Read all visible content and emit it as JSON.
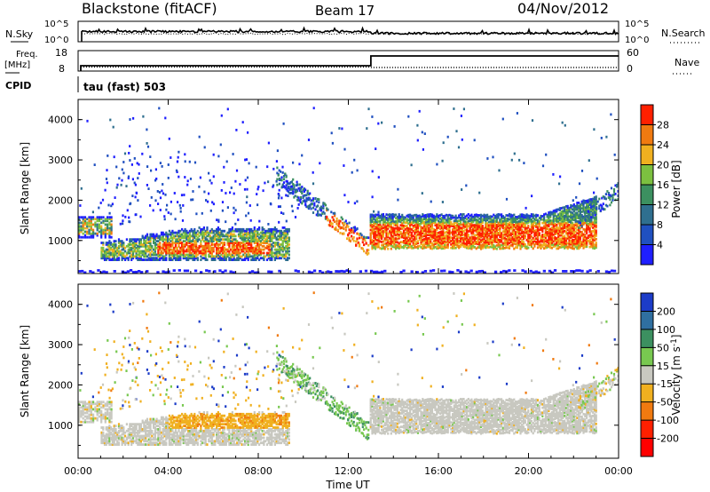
{
  "header": {
    "station": "Blackstone (fitACF)",
    "beam": "Beam 17",
    "date": "04/Nov/2012"
  },
  "params": {
    "nsky_label": "N.Sky",
    "nsearch_label": "N.Search",
    "noise_ticks": [
      "10^5",
      "10^0"
    ],
    "noise_ticks_right": [
      "10^5",
      "10^0"
    ],
    "freq_label_1": "Freq.",
    "freq_label_2": "[MHz]",
    "freq_ticks": [
      "18",
      "8"
    ],
    "nave_label": "Nave",
    "nave_ticks": [
      "60",
      "0"
    ],
    "cpid_label": "CPID",
    "cpid_text": "tau (fast) 503"
  },
  "chart_data": [
    {
      "type": "heatmap",
      "panel": "power",
      "ylabel": "Slant Range [km]",
      "yticks": [
        1000,
        2000,
        3000,
        4000
      ],
      "ylim": [
        180,
        4500
      ],
      "xlim_hours": [
        0,
        24
      ],
      "colorbar": {
        "label": "Power [dB]",
        "ticks": [
          "4",
          "8",
          "12",
          "16",
          "20",
          "24",
          "28"
        ],
        "colors": [
          "#1f1fff",
          "#2050c0",
          "#2f6f8f",
          "#3c9060",
          "#7cc040",
          "#f0b020",
          "#f07a10",
          "#ff2000"
        ]
      }
    },
    {
      "type": "heatmap",
      "panel": "velocity",
      "ylabel": "Slant Range [km]",
      "yticks": [
        1000,
        2000,
        3000,
        4000
      ],
      "ylim": [
        180,
        4500
      ],
      "xlim_hours": [
        0,
        24
      ],
      "colorbar": {
        "label": "Velocity [m s",
        "label_sup": "-1",
        "label_end": "]",
        "ticks": [
          "200",
          "100",
          "50",
          "15",
          "-15",
          "-50",
          "-100",
          "-200"
        ],
        "colors": [
          "#1c3cc8",
          "#2f6fa0",
          "#3c9060",
          "#78c850",
          "#c8c8c0",
          "#f0b020",
          "#f07a10",
          "#ff2000",
          "#ff0000"
        ]
      },
      "xticks": [
        "00:00",
        "04:00",
        "08:00",
        "12:00",
        "16:00",
        "20:00",
        "00:00"
      ],
      "xlabel": "Time UT"
    }
  ]
}
